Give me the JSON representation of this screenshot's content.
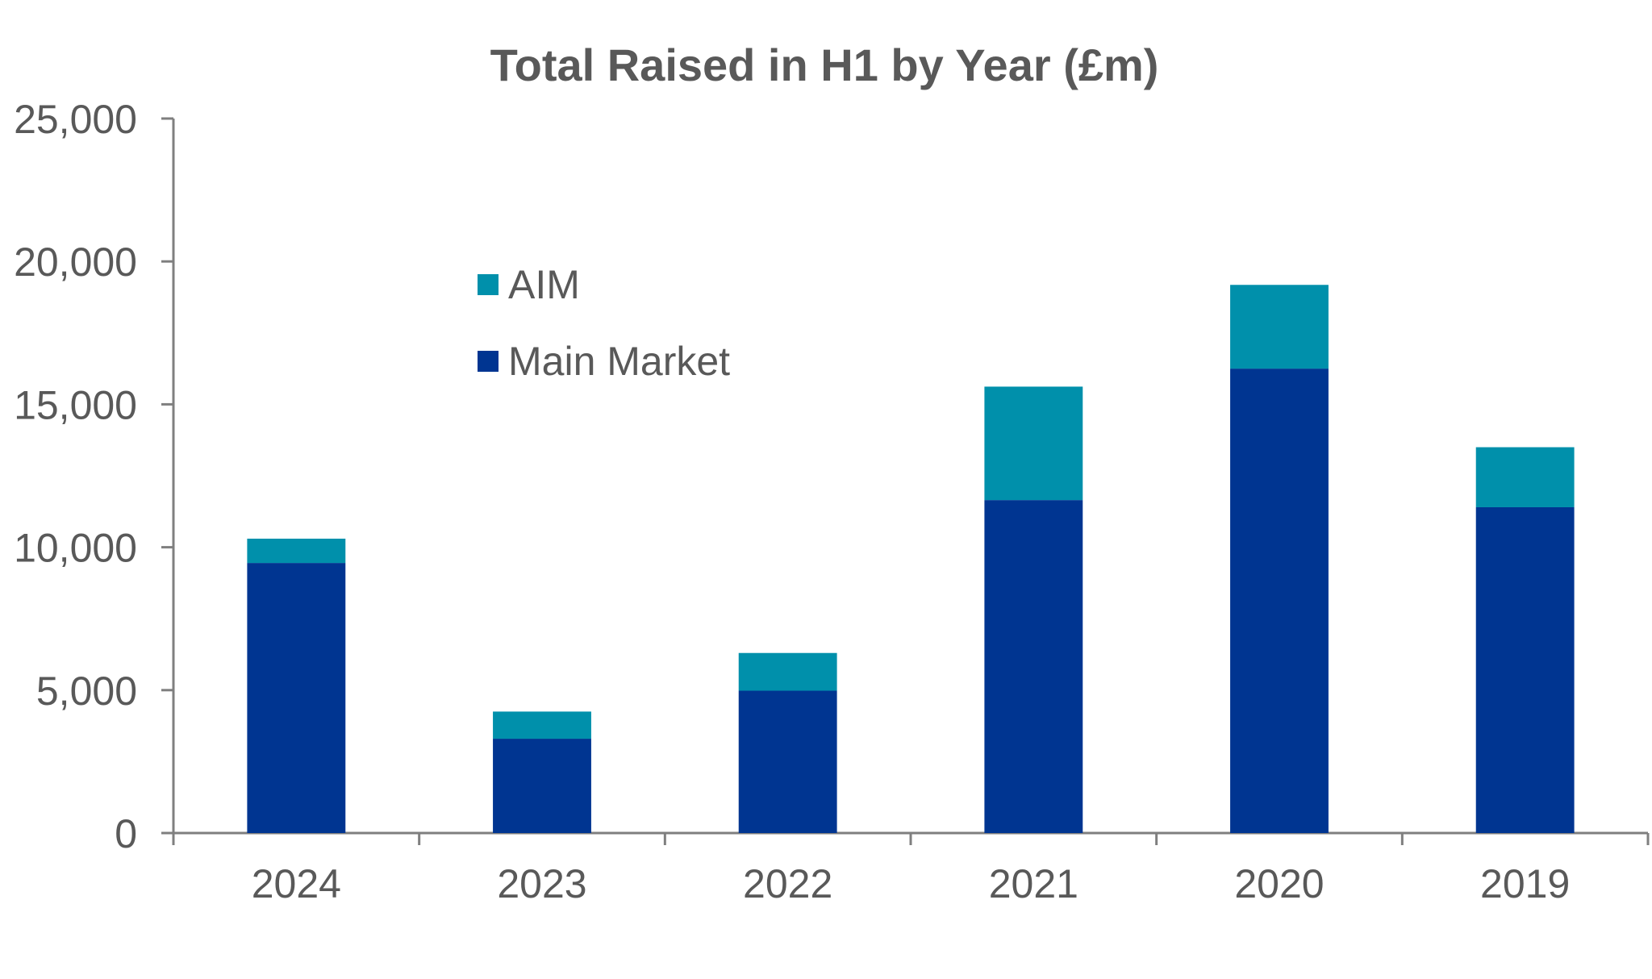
{
  "chart_data": {
    "type": "bar",
    "stacked": true,
    "title": "Total Raised in H1 by Year (£m)",
    "xlabel": "",
    "ylabel": "",
    "categories": [
      "2024",
      "2023",
      "2022",
      "2021",
      "2020",
      "2019"
    ],
    "series": [
      {
        "name": "Main Market",
        "color": "#003591",
        "values": [
          9450,
          3300,
          4980,
          11650,
          16250,
          11400
        ]
      },
      {
        "name": "AIM",
        "color": "#0090AB",
        "values": [
          850,
          950,
          1320,
          3970,
          2930,
          2100
        ]
      }
    ],
    "ylim": [
      0,
      25000
    ],
    "yticks": [
      0,
      5000,
      10000,
      15000,
      20000,
      25000
    ],
    "ytick_labels": [
      "0",
      "5,000",
      "10,000",
      "15,000",
      "20,000",
      "25,000"
    ],
    "grid": false,
    "legend": {
      "position": "upper-left inside",
      "entries": [
        "AIM",
        "Main Market"
      ]
    },
    "axis_color": "#7f7f7f",
    "text_color": "#595959"
  }
}
